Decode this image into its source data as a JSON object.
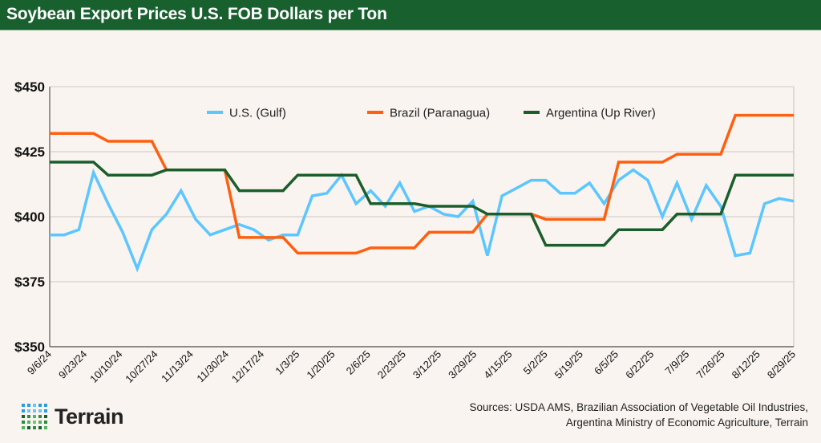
{
  "header": {
    "title": "Soybean Export Prices U.S. FOB Dollars per Ton"
  },
  "chart_data": {
    "type": "line",
    "title": "Soybean Export Prices U.S. FOB Dollars per Ton",
    "xlabel": "",
    "ylabel": "",
    "ylim": [
      350,
      450
    ],
    "y_ticks": [
      "$350",
      "$375",
      "$400",
      "$425",
      "$450"
    ],
    "y_tick_values": [
      350,
      375,
      400,
      425,
      450
    ],
    "x_start": "9/6/24",
    "x_end": "8/29/25",
    "x_tick_labels": [
      "9/6/24",
      "9/23/24",
      "10/10/24",
      "10/27/24",
      "11/13/24",
      "11/30/24",
      "12/17/24",
      "1/3/25",
      "1/20/25",
      "2/6/25",
      "2/23/25",
      "3/12/25",
      "3/29/25",
      "4/15/25",
      "5/2/25",
      "5/19/25",
      "6/5/25",
      "6/22/25",
      "7/9/25",
      "7/26/25",
      "8/12/25",
      "8/29/25"
    ],
    "grid": "horizontal",
    "legend_position": "top",
    "series": [
      {
        "name": "U.S. (Gulf)",
        "color": "#5bc6ff",
        "values": [
          393,
          393,
          395,
          417,
          405,
          394,
          380,
          395,
          401,
          410,
          399,
          393,
          395,
          397,
          395,
          391,
          393,
          393,
          408,
          409,
          416,
          405,
          410,
          404,
          413,
          402,
          404,
          401,
          400,
          406,
          385,
          408,
          411,
          414,
          414,
          409,
          409,
          413,
          405,
          414,
          418,
          414,
          400,
          413,
          399,
          412,
          404,
          385,
          386,
          405,
          407,
          406
        ]
      },
      {
        "name": "Brazil (Paranagua)",
        "color": "#ff5f0f",
        "values": [
          432,
          432,
          432,
          432,
          429,
          429,
          429,
          429,
          418,
          418,
          418,
          418,
          418,
          392,
          392,
          392,
          392,
          386,
          386,
          386,
          386,
          386,
          388,
          388,
          388,
          388,
          394,
          394,
          394,
          394,
          401,
          401,
          401,
          401,
          399,
          399,
          399,
          399,
          399,
          421,
          421,
          421,
          421,
          424,
          424,
          424,
          424,
          439,
          439,
          439,
          439,
          439
        ]
      },
      {
        "name": "Argentina (Up River)",
        "color": "#1b5e2c",
        "values": [
          421,
          421,
          421,
          421,
          416,
          416,
          416,
          416,
          418,
          418,
          418,
          418,
          418,
          410,
          410,
          410,
          410,
          416,
          416,
          416,
          416,
          416,
          405,
          405,
          405,
          405,
          404,
          404,
          404,
          404,
          401,
          401,
          401,
          401,
          389,
          389,
          389,
          389,
          389,
          395,
          395,
          395,
          395,
          401,
          401,
          401,
          401,
          416,
          416,
          416,
          416,
          416
        ]
      }
    ]
  },
  "footer": {
    "sources_line1": "Sources: USDA AMS, Brazilian Association of Vegetable Oil Industries,",
    "sources_line2": "Argentina Ministry of Economic Agriculture, Terrain",
    "logo_text": "Terrain"
  }
}
